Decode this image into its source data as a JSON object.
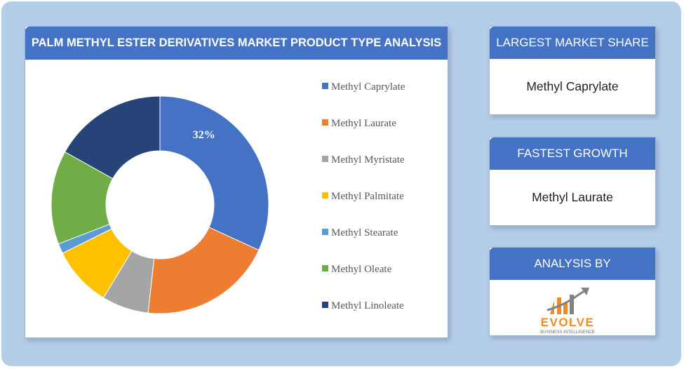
{
  "chart_title": "PALM METHYL ESTER DERIVATIVES MARKET PRODUCT TYPE ANALYSIS",
  "chart_data": {
    "type": "pie",
    "donut": true,
    "categories": [
      "Methyl Caprylate",
      "Methyl Laurate",
      "Methyl Myristate",
      "Methyl Palmitate",
      "Methyl Stearate",
      "Methyl Oleate",
      "Methyl Linoleate"
    ],
    "values": [
      32,
      20,
      7,
      9,
      1.5,
      14,
      17
    ],
    "colors": [
      "#4472c4",
      "#ed7d31",
      "#a5a5a5",
      "#ffc000",
      "#5b9bd5",
      "#70ad47",
      "#264478"
    ],
    "data_labels": [
      "32%",
      "",
      "",
      "",
      "",
      "",
      ""
    ],
    "legend_position": "right"
  },
  "cards": {
    "largest": {
      "heading": "LARGEST MARKET SHARE",
      "value": "Methyl Caprylate"
    },
    "fastest": {
      "heading": "FASTEST GROWTH",
      "value": "Methyl Laurate"
    },
    "analysis": {
      "heading": "ANALYSIS BY"
    }
  },
  "logo": {
    "name": "EVOLVE",
    "tagline": "BUSINESS INTELLIGENCE",
    "colors": {
      "orange": "#f08a24",
      "grey": "#7f8288"
    }
  }
}
